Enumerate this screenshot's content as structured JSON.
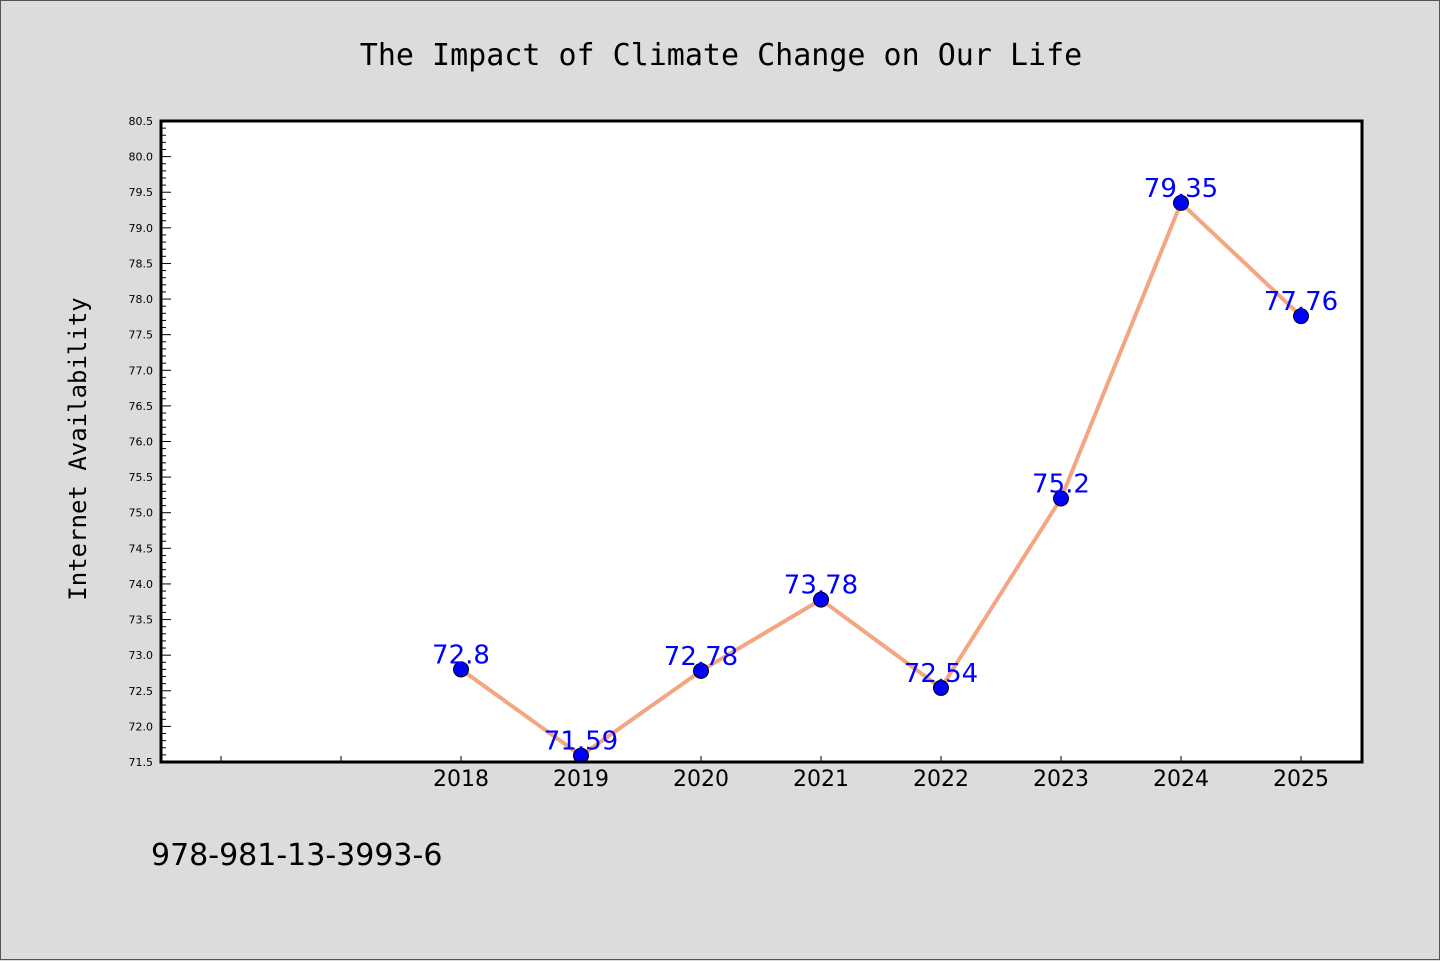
{
  "chart_data": {
    "type": "line",
    "title": "The Impact of Climate Change on Our Life",
    "ylabel": "Internet Availability",
    "xlabel": "",
    "categories": [
      "2018",
      "2019",
      "2020",
      "2021",
      "2022",
      "2023",
      "2024",
      "2025"
    ],
    "values": [
      72.8,
      71.59,
      72.78,
      73.78,
      72.54,
      75.2,
      79.35,
      77.76
    ],
    "data_labels": [
      "72.8",
      "71.59",
      "72.78",
      "73.78",
      "72.54",
      "75.2",
      "79.35",
      "77.76"
    ],
    "ylim": [
      71.5,
      80.5
    ],
    "yticks": [
      "71.5",
      "72.0",
      "72.5",
      "73.0",
      "73.5",
      "74.0",
      "74.5",
      "75.0",
      "75.5",
      "76.0",
      "76.5",
      "77.0",
      "77.5",
      "78.0",
      "78.5",
      "79.0",
      "79.5",
      "80.0",
      "80.5"
    ],
    "grid": false,
    "line_color": "#f4a582",
    "marker_color": "#0000ff",
    "label_color": "#0000ff"
  },
  "footer": {
    "isbn": "978-981-13-3993-6"
  }
}
